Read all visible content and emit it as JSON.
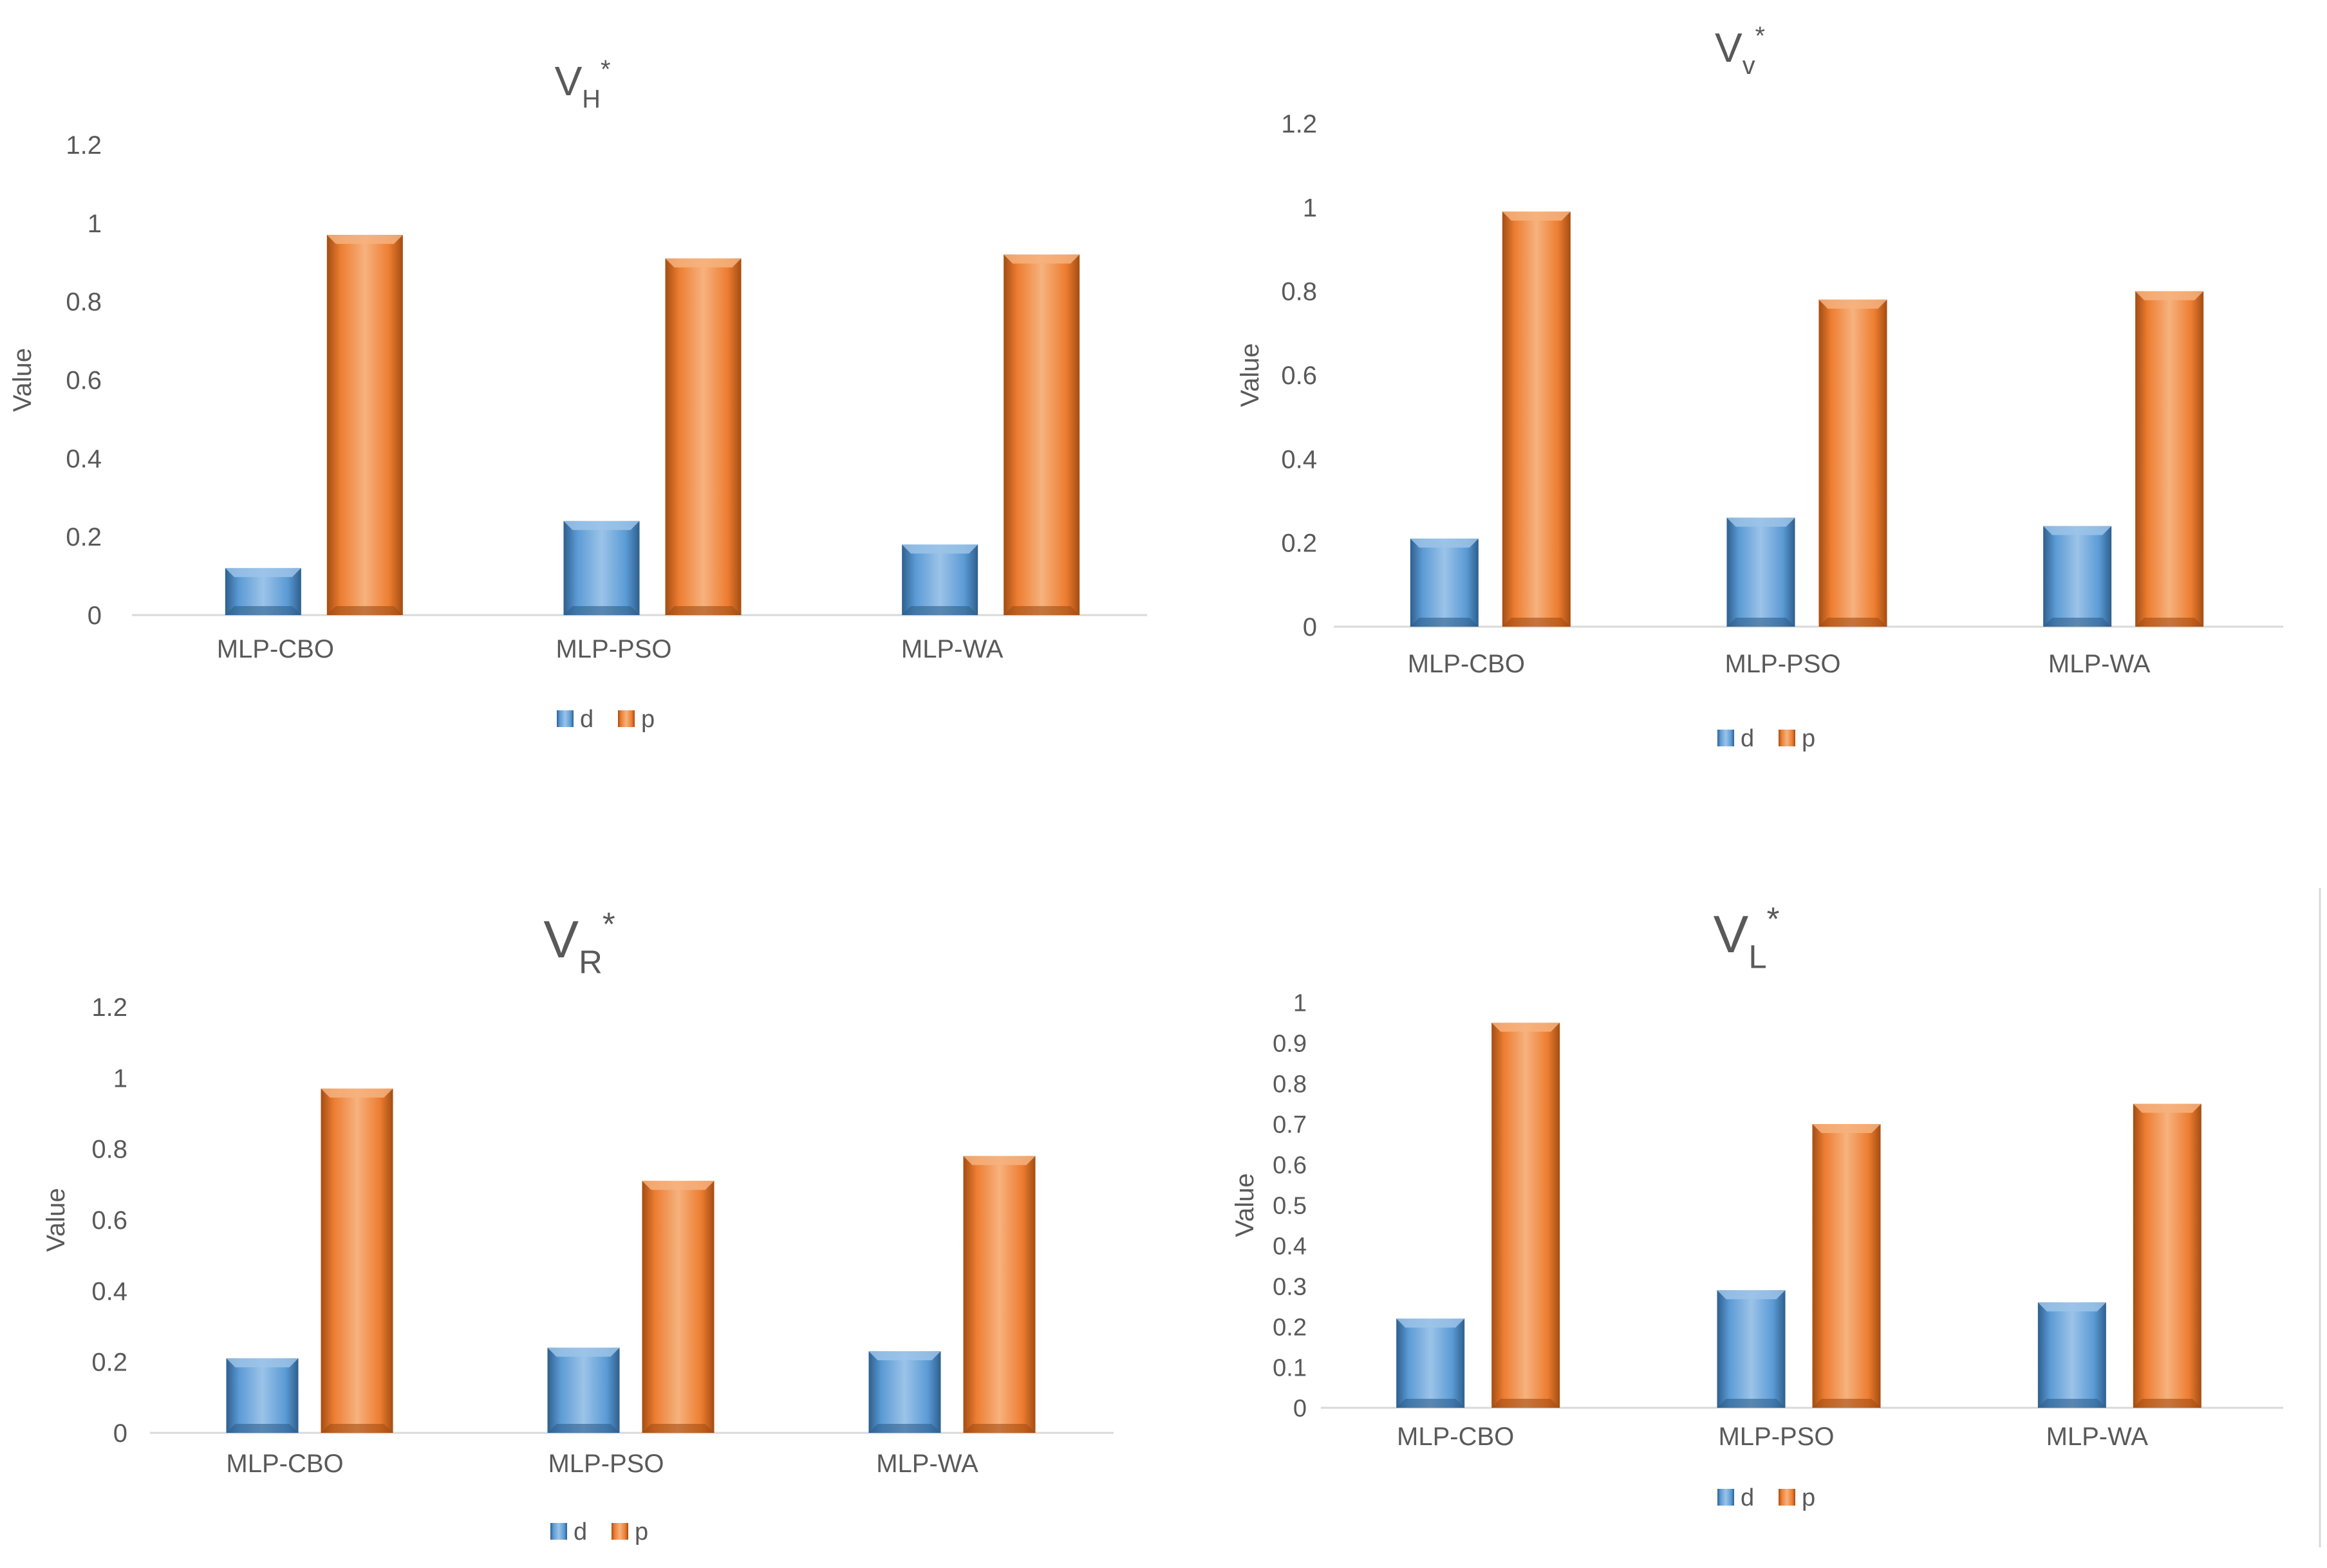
{
  "legend_labels": {
    "d": "d",
    "p": "p"
  },
  "colors": {
    "d_fill": "#5b9bd5",
    "d_light": "#9cc3e8",
    "d_dark": "#2e5f8e",
    "p_fill": "#ed7d31",
    "p_light": "#f6b27e",
    "p_dark": "#a34d12",
    "axis_text": "#595959",
    "axis_line": "#d9d9d9"
  },
  "chart_data": [
    {
      "type": "bar",
      "title": {
        "main": "V",
        "sub": "H",
        "sup": "*"
      },
      "ylabel": "Value",
      "xlabel": "",
      "categories": [
        "MLP-CBO",
        "MLP-PSO",
        "MLP-WA"
      ],
      "series": [
        {
          "name": "d",
          "values": [
            0.12,
            0.24,
            0.18
          ]
        },
        {
          "name": "p",
          "values": [
            0.97,
            0.91,
            0.92
          ]
        }
      ],
      "ylim": [
        0,
        1.2
      ],
      "yticks": [
        "0",
        "0.2",
        "0.4",
        "0.6",
        "0.8",
        "1",
        "1.2"
      ],
      "legend_position": "bottom",
      "grid": false
    },
    {
      "type": "bar",
      "title": {
        "main": "V",
        "sub": "v",
        "sup": "*"
      },
      "ylabel": "Value",
      "xlabel": "",
      "categories": [
        "MLP-CBO",
        "MLP-PSO",
        "MLP-WA"
      ],
      "series": [
        {
          "name": "d",
          "values": [
            0.21,
            0.26,
            0.24
          ]
        },
        {
          "name": "p",
          "values": [
            0.99,
            0.78,
            0.8
          ]
        }
      ],
      "ylim": [
        0,
        1.2
      ],
      "yticks": [
        "0",
        "0.2",
        "0.4",
        "0.6",
        "0.8",
        "1",
        "1.2"
      ],
      "legend_position": "bottom",
      "grid": false
    },
    {
      "type": "bar",
      "title": {
        "main": "V",
        "sub": "R",
        "sup": "*"
      },
      "ylabel": "Value",
      "xlabel": "",
      "categories": [
        "MLP-CBO",
        "MLP-PSO",
        "MLP-WA"
      ],
      "series": [
        {
          "name": "d",
          "values": [
            0.21,
            0.24,
            0.23
          ]
        },
        {
          "name": "p",
          "values": [
            0.97,
            0.71,
            0.78
          ]
        }
      ],
      "ylim": [
        0,
        1.2
      ],
      "yticks": [
        "0",
        "0.2",
        "0.4",
        "0.6",
        "0.8",
        "1",
        "1.2"
      ],
      "legend_position": "bottom",
      "grid": false
    },
    {
      "type": "bar",
      "title": {
        "main": "V",
        "sub": "L",
        "sup": "*"
      },
      "ylabel": "Value",
      "xlabel": "",
      "categories": [
        "MLP-CBO",
        "MLP-PSO",
        "MLP-WA"
      ],
      "series": [
        {
          "name": "d",
          "values": [
            0.22,
            0.29,
            0.26
          ]
        },
        {
          "name": "p",
          "values": [
            0.95,
            0.7,
            0.75
          ]
        }
      ],
      "ylim": [
        0,
        1
      ],
      "yticks": [
        "0",
        "0.1",
        "0.2",
        "0.3",
        "0.4",
        "0.5",
        "0.6",
        "0.7",
        "0.8",
        "0.9",
        "1"
      ],
      "legend_position": "bottom",
      "grid": false
    }
  ]
}
